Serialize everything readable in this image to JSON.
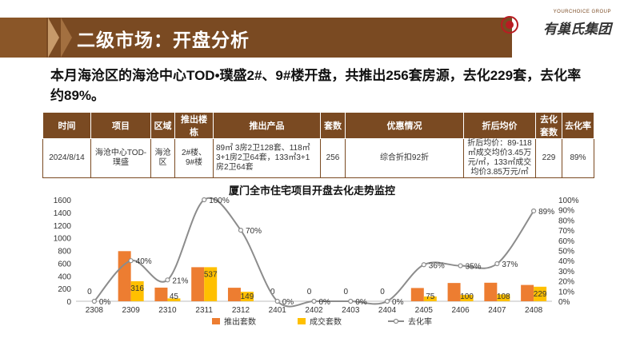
{
  "header": {
    "title": "二级市场：开盘分析"
  },
  "logo": {
    "en": "YOURCHOICE GROUP",
    "cn": "有巢氏集团"
  },
  "summary": "本月海沧区的海沧中心TOD•璞盛2#、9#楼开盘，共推出256套房源，去化229套，去化率约89%。",
  "table": {
    "headers": [
      "时间",
      "项目",
      "区域",
      "推出楼栋",
      "推出产品",
      "套数",
      "优惠情况",
      "折后均价",
      "去化套数",
      "去化率"
    ],
    "row": [
      "2024/8/14",
      "海沧中心TOD-璞盛",
      "海沧区",
      "2#楼、9#楼",
      "89㎡ 3房2卫128套、118㎡3+1房2卫64套，133㎡3+1房2卫64套",
      "256",
      "综合折扣92折",
      "折后均价：89-118㎡成交均价3.45万元/㎡，133㎡成交均价3.85万元/㎡",
      "229",
      "89%"
    ]
  },
  "chart_data": {
    "type": "bar",
    "title": "厦门全市住宅项目开盘去化走势监控",
    "categories": [
      "2308",
      "2309",
      "2310",
      "2311",
      "2312",
      "2401",
      "2402",
      "2403",
      "2404",
      "2405",
      "2406",
      "2407",
      "2408"
    ],
    "series": [
      {
        "name": "推出套数",
        "type": "bar",
        "axis": "left",
        "color": "#ed7d31",
        "values": [
          0,
          790,
          215,
          537,
          213,
          0,
          0,
          0,
          0,
          209,
          288,
          292,
          257
        ]
      },
      {
        "name": "成交套数",
        "type": "bar",
        "axis": "left",
        "color": "#ffc000",
        "values": [
          0,
          316,
          45,
          537,
          149,
          0,
          0,
          0,
          0,
          75,
          100,
          108,
          229
        ]
      },
      {
        "name": "去化率",
        "type": "line",
        "axis": "right",
        "color": "#8c8c8c",
        "values": [
          0,
          40,
          21,
          100,
          70,
          0,
          0,
          0,
          0,
          36,
          35,
          37,
          89
        ]
      }
    ],
    "bar_labels": [
      "0",
      "316",
      "45",
      "537",
      "149",
      "0",
      "0",
      "0",
      "0",
      "75",
      "100",
      "108",
      "229"
    ],
    "line_labels": [
      "0%",
      "40%",
      "21%",
      "100%",
      "70%",
      "0%",
      "0%",
      "0%",
      "0%",
      "36%",
      "35%",
      "37%",
      "89%"
    ],
    "ylim": [
      0,
      1600
    ],
    "yticks": [
      "0",
      "200",
      "400",
      "600",
      "800",
      "1000",
      "1200",
      "1400",
      "1600"
    ],
    "y2lim": [
      0,
      100
    ],
    "y2ticks": [
      "0%",
      "10%",
      "20%",
      "30%",
      "40%",
      "50%",
      "60%",
      "70%",
      "80%",
      "90%",
      "100%"
    ],
    "legend_position": "bottom",
    "grid": false
  }
}
